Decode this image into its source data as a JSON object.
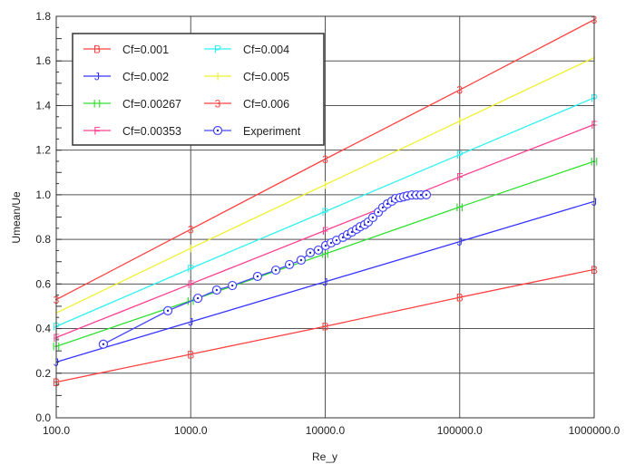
{
  "chart_data": {
    "type": "line",
    "title": "",
    "xlabel": "Re_y",
    "ylabel": "Umean/Ue",
    "xscale": "log",
    "xlim": [
      100,
      1000000
    ],
    "ylim": [
      0,
      1.8
    ],
    "grid": true,
    "legend_position": "top-left",
    "x_ticks": [
      100,
      1000,
      10000,
      100000,
      1000000
    ],
    "x_tick_labels": [
      "100.0",
      "1000.0",
      "10000.0",
      "100000.0",
      "1000000.0"
    ],
    "y_ticks": [
      0,
      0.2,
      0.4,
      0.6,
      0.8,
      1.0,
      1.2,
      1.4,
      1.6,
      1.8
    ],
    "y_tick_labels": [
      "0.0",
      "0.2",
      "0.4",
      "0.6",
      "0.8",
      "1.0",
      "1.2",
      "1.4",
      "1.6",
      "1.8"
    ],
    "series": [
      {
        "name": "Cf=0.001",
        "marker": "B",
        "color": "#ff4040",
        "x": [
          100,
          1000,
          10000,
          100000,
          1000000
        ],
        "y": [
          0.16,
          0.285,
          0.41,
          0.54,
          0.665
        ]
      },
      {
        "name": "Cf=0.002",
        "marker": "J",
        "color": "#3535ff",
        "x": [
          100,
          1000,
          10000,
          100000,
          1000000
        ],
        "y": [
          0.25,
          0.43,
          0.61,
          0.79,
          0.97
        ]
      },
      {
        "name": "Cf=0.00267",
        "marker": "H",
        "color": "#30e030",
        "x": [
          100,
          1000,
          10000,
          100000,
          1000000
        ],
        "y": [
          0.32,
          0.525,
          0.735,
          0.945,
          1.15
        ]
      },
      {
        "name": "Cf=0.00353",
        "marker": "F",
        "color": "#ff4090",
        "x": [
          100,
          1000,
          10000,
          100000,
          1000000
        ],
        "y": [
          0.36,
          0.6,
          0.84,
          1.08,
          1.315
        ]
      },
      {
        "name": "Cf=0.004",
        "marker": "P",
        "color": "#30f0f0",
        "x": [
          100,
          1000,
          10000,
          100000,
          1000000
        ],
        "y": [
          0.41,
          0.67,
          0.925,
          1.18,
          1.435
        ]
      },
      {
        "name": "Cf=0.005",
        "marker": "I",
        "color": "#f0f030",
        "x": [
          100,
          1000,
          10000,
          100000,
          1000000
        ],
        "y": [
          0.47,
          0.76,
          1.045,
          1.33,
          1.615
        ]
      },
      {
        "name": "Cf=0.006",
        "marker": "3",
        "color": "#ff4040",
        "x": [
          100,
          1000,
          10000,
          100000,
          1000000
        ],
        "y": [
          0.53,
          0.845,
          1.16,
          1.47,
          1.785
        ]
      },
      {
        "name": "Experiment",
        "marker": "circle-dot",
        "color": "#4848ff",
        "x": [
          224,
          676,
          1130,
          1560,
          2040,
          3140,
          4290,
          5420,
          6620,
          7740,
          8900,
          10070,
          11060,
          12140,
          13540,
          14630,
          15810,
          17090,
          18200,
          19660,
          20910,
          22590,
          24820,
          26810,
          28970,
          31310,
          33330,
          35990,
          38300,
          40740,
          44060,
          47640,
          51500,
          56490
        ],
        "y": [
          0.33,
          0.48,
          0.536,
          0.573,
          0.593,
          0.634,
          0.662,
          0.687,
          0.707,
          0.74,
          0.752,
          0.772,
          0.784,
          0.796,
          0.809,
          0.821,
          0.833,
          0.845,
          0.857,
          0.866,
          0.878,
          0.898,
          0.922,
          0.943,
          0.959,
          0.971,
          0.983,
          0.987,
          0.991,
          0.995,
          0.999,
          0.999,
          0.999,
          1.0
        ]
      }
    ]
  }
}
